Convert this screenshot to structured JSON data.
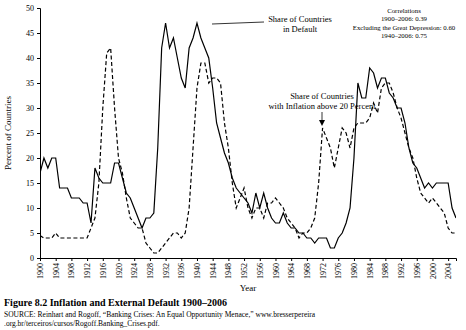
{
  "chart_data": {
    "type": "line",
    "title": "Figure 8.2  Inflation and External Default 1900–2006",
    "source": [
      "SOURCE: Reinhart and Rogoff, “Banking Crises: An Equal Opportunity Menace,” www.bresserpereira",
      ".org.br/terceiros/cursos/Rogoff.Banking_Crises.pdf."
    ],
    "x_label": "Year",
    "y_label": "Percent of Countries",
    "x": [
      1900,
      1901,
      1902,
      1903,
      1904,
      1905,
      1906,
      1907,
      1908,
      1909,
      1910,
      1911,
      1912,
      1913,
      1914,
      1915,
      1916,
      1917,
      1918,
      1919,
      1920,
      1921,
      1922,
      1923,
      1924,
      1925,
      1926,
      1927,
      1928,
      1929,
      1930,
      1931,
      1932,
      1933,
      1934,
      1935,
      1936,
      1937,
      1938,
      1939,
      1940,
      1941,
      1942,
      1943,
      1944,
      1945,
      1946,
      1947,
      1948,
      1949,
      1950,
      1951,
      1952,
      1953,
      1954,
      1955,
      1956,
      1957,
      1958,
      1959,
      1960,
      1961,
      1962,
      1963,
      1964,
      1965,
      1966,
      1967,
      1968,
      1969,
      1970,
      1971,
      1972,
      1973,
      1974,
      1975,
      1976,
      1977,
      1978,
      1979,
      1980,
      1981,
      1982,
      1983,
      1984,
      1985,
      1986,
      1987,
      1988,
      1989,
      1990,
      1991,
      1992,
      1993,
      1994,
      1995,
      1996,
      1997,
      1998,
      1999,
      2000,
      2001,
      2002,
      2003,
      2004,
      2005,
      2006
    ],
    "series": [
      {
        "name": "Share of Countries in Default",
        "color": "#000000",
        "line_style": "solid",
        "values": [
          17,
          20,
          18,
          20,
          20,
          14,
          14,
          14,
          12,
          12,
          12,
          11,
          11,
          7,
          18,
          16,
          15,
          15,
          15,
          19,
          19,
          16,
          13,
          12,
          10,
          8,
          6,
          8,
          8,
          9,
          22,
          42,
          47,
          42,
          44,
          40,
          36,
          34,
          42,
          44,
          47,
          44,
          42,
          40,
          34,
          27,
          24,
          21,
          19,
          16,
          14,
          13,
          12,
          11,
          9,
          13,
          10,
          13,
          10,
          8,
          7,
          7,
          9,
          7,
          6,
          6,
          5,
          5,
          4,
          4,
          3,
          4,
          4,
          4,
          2,
          2,
          4,
          5,
          7,
          10,
          20,
          35,
          32,
          32,
          38,
          37,
          34,
          36,
          36,
          33,
          32,
          30,
          30,
          27,
          22,
          19,
          18,
          16,
          14,
          15,
          14,
          15,
          15,
          15,
          15,
          10,
          8
        ]
      },
      {
        "name": "Share of Countries with Inflation above 20 Percent",
        "color": "#000000",
        "line_style": "dashed",
        "values": [
          4.5,
          4,
          4,
          4,
          5,
          4,
          4,
          4,
          4,
          4,
          4,
          4,
          4,
          6,
          8,
          15,
          30,
          41,
          42,
          30,
          20,
          17,
          12,
          8,
          7,
          6,
          6,
          3,
          2,
          1,
          1,
          2,
          3,
          4,
          5,
          5,
          4,
          5,
          10,
          22,
          34,
          39,
          39,
          35,
          36,
          36,
          35,
          27,
          22,
          15,
          10,
          12,
          14,
          10,
          8,
          10,
          10,
          8,
          11,
          11,
          12,
          11,
          10,
          8,
          7,
          6,
          4,
          5,
          5,
          6,
          8,
          15,
          26,
          24,
          22,
          18,
          22,
          26,
          25,
          22,
          26,
          27,
          27,
          27,
          28,
          31,
          29,
          34,
          35,
          35,
          33,
          30,
          28,
          25,
          22,
          20,
          16,
          13,
          12,
          11,
          12,
          11,
          10,
          9,
          6,
          5,
          5
        ]
      }
    ],
    "annotations": [
      {
        "lines": [
          "Share of Countries",
          "in Default"
        ]
      },
      {
        "lines": [
          "Share of Countries",
          "with Inflation above 20 Percent"
        ]
      },
      {
        "lines": [
          "Correlations",
          "1900–2006: 0.39",
          "Excluding the Great Depression: 0.60",
          "1940–2006: 0.75"
        ]
      }
    ],
    "xlim": [
      1900,
      2006
    ],
    "xticks": [
      1900,
      1904,
      1908,
      1912,
      1916,
      1920,
      1924,
      1928,
      1932,
      1936,
      1940,
      1944,
      1948,
      1952,
      1956,
      1960,
      1964,
      1968,
      1972,
      1976,
      1980,
      1984,
      1988,
      1992,
      1996,
      2000,
      2004
    ],
    "ylim": [
      0,
      50
    ],
    "yticks": [
      0,
      5,
      10,
      15,
      20,
      25,
      30,
      35,
      40,
      45,
      50
    ],
    "grid": false
  }
}
